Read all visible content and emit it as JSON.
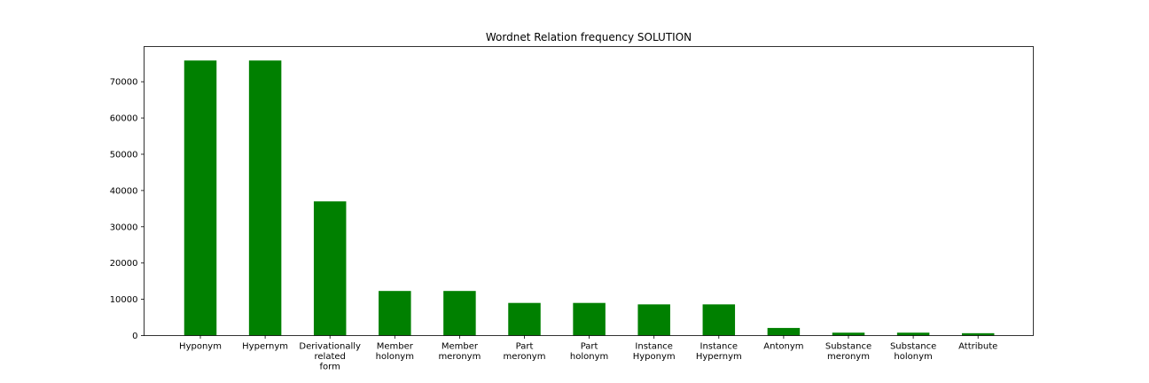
{
  "chart_data": {
    "type": "bar",
    "title": "Wordnet Relation frequency SOLUTION",
    "xlabel": "",
    "ylabel": "",
    "categories": [
      [
        "Hyponym"
      ],
      [
        "Hypernym"
      ],
      [
        "Derivationally",
        "related",
        "form"
      ],
      [
        "Member",
        "holonym"
      ],
      [
        "Member",
        "meronym"
      ],
      [
        "Part",
        "meronym"
      ],
      [
        "Part",
        "holonym"
      ],
      [
        "Instance",
        "Hyponym"
      ],
      [
        "Instance",
        "Hypernym"
      ],
      [
        "Antonym"
      ],
      [
        "Substance",
        "meronym"
      ],
      [
        "Substance",
        "holonym"
      ],
      [
        "Attribute"
      ]
    ],
    "values": [
      75850,
      75850,
      37000,
      12300,
      12300,
      9000,
      9000,
      8600,
      8600,
      2100,
      800,
      800,
      650
    ],
    "ylim": [
      0,
      79700
    ],
    "yticks": [
      0,
      10000,
      20000,
      30000,
      40000,
      50000,
      60000,
      70000
    ],
    "bar_color": "#008000",
    "grid": false,
    "legend": "none"
  }
}
